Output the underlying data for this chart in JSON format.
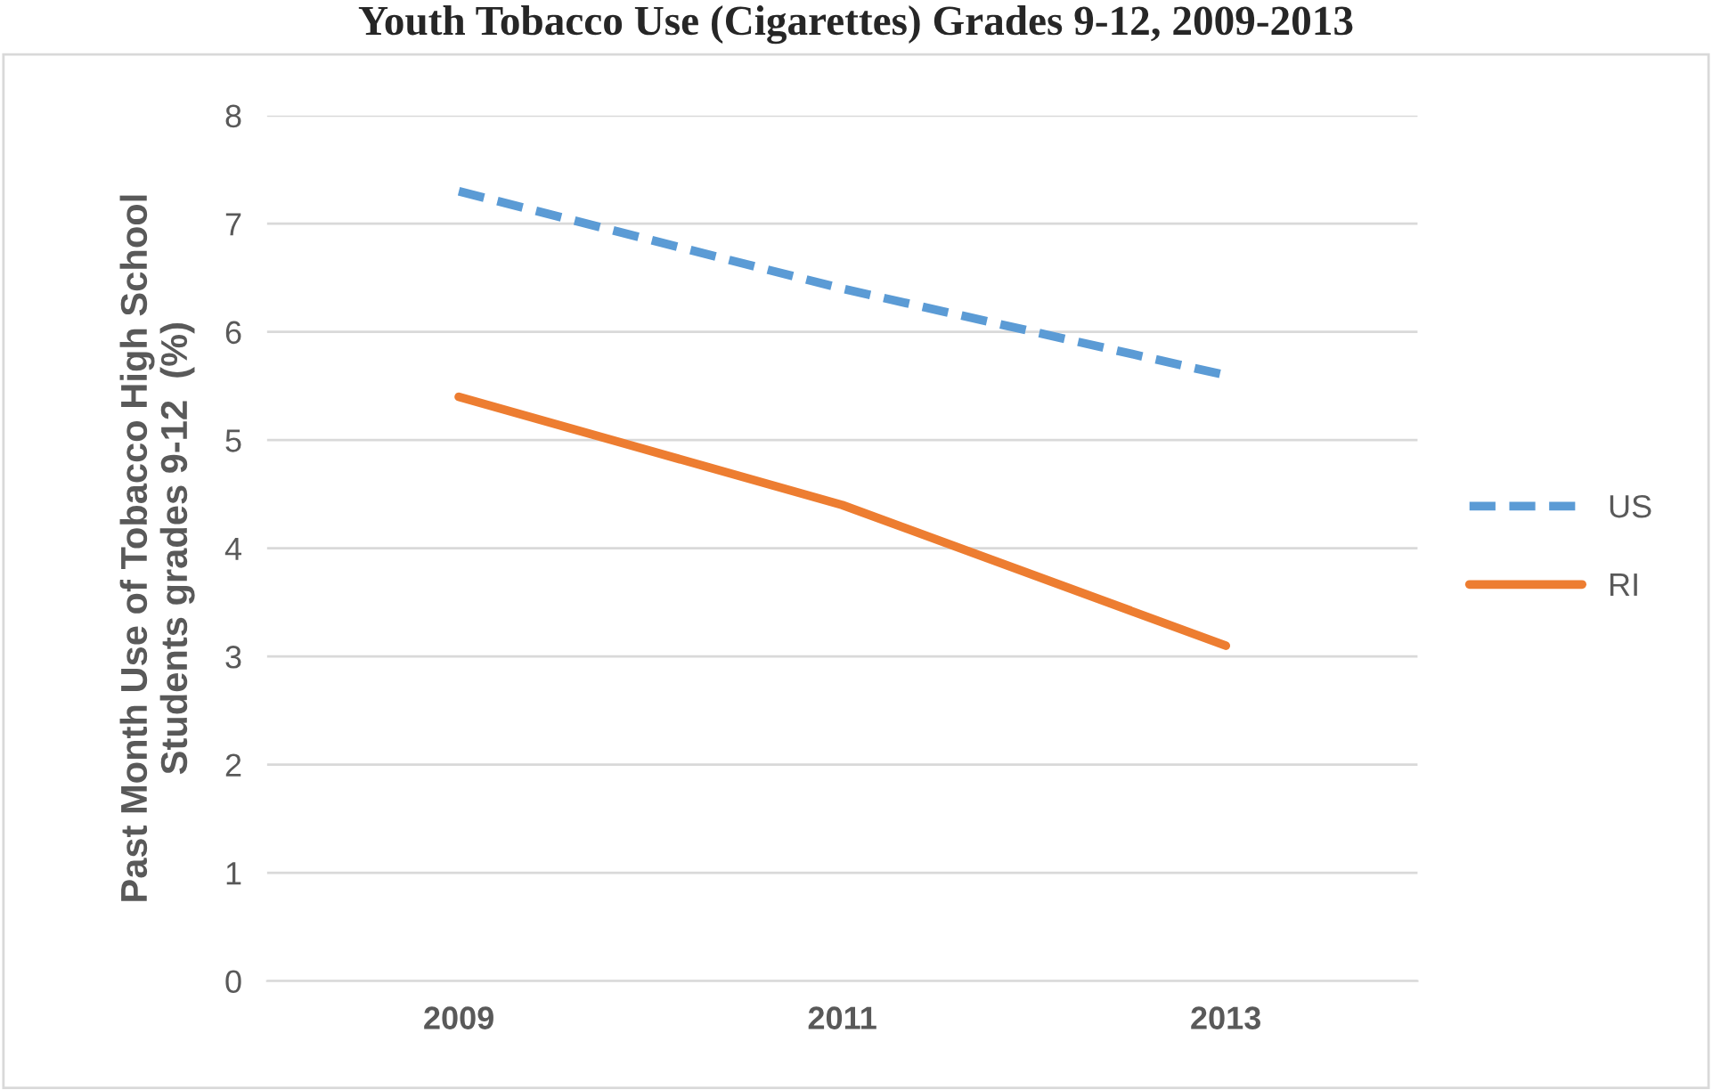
{
  "chart_data": {
    "type": "line",
    "title": "Youth Tobacco Use (Cigarettes) Grades 9-12, 2009-2013",
    "ylabel": "Past Month Use of Tobacco High School\nStudents grades 9-12  (%)",
    "categories": [
      "2009",
      "2011",
      "2013"
    ],
    "series": [
      {
        "name": "US",
        "color": "#5b9bd5",
        "line_style": "dashed",
        "values": [
          7.3,
          6.4,
          5.6
        ]
      },
      {
        "name": "RI",
        "color": "#ed7d31",
        "line_style": "solid",
        "values": [
          5.4,
          4.4,
          3.1
        ]
      }
    ],
    "ylim": [
      0,
      8
    ],
    "yticks": [
      0,
      1,
      2,
      3,
      4,
      5,
      6,
      7,
      8
    ],
    "grid": "y",
    "legend": "right",
    "marker": "none"
  }
}
